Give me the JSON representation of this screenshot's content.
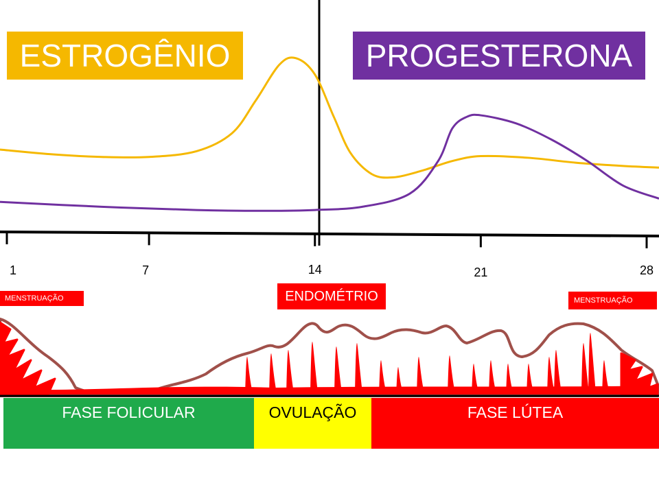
{
  "labels": {
    "estrogen": "ESTROGÊNIO",
    "progesterone": "PROGESTERONA",
    "endometrium": "ENDOMÉTRIO",
    "menstruation_left": "MENSTRUAÇÃO",
    "menstruation_right": "MENSTRUAÇÃO"
  },
  "colors": {
    "estrogen": "#f5b800",
    "progesterone": "#7030a0",
    "red": "#ff0000",
    "endometrium_outline": "#a0504a",
    "follicular": "#1faa4b",
    "ovulation": "#ffff00",
    "luteal": "#ff0000"
  },
  "phases": [
    {
      "name": "FASE FOLICULAR"
    },
    {
      "name": "OVULAÇÃO"
    },
    {
      "name": "FASE LÚTEA"
    }
  ],
  "chart_data": {
    "type": "line",
    "x_ticks": [
      1,
      7,
      14,
      21,
      28
    ],
    "xlim": [
      1,
      28
    ],
    "ylim": [
      0,
      100
    ],
    "series": [
      {
        "name": "ESTROGÊNIO",
        "x": [
          1,
          3,
          5,
          7,
          9,
          10.5,
          11.5,
          12.5,
          13.2,
          14,
          14.8,
          15.5,
          16.4,
          17.3,
          18.5,
          19.8,
          21,
          23,
          25,
          27,
          28
        ],
        "y": [
          42,
          39,
          37.5,
          37.5,
          41,
          52,
          72,
          94,
          98,
          88,
          62,
          40,
          27,
          25,
          29,
          35,
          38,
          37,
          34,
          32,
          31
        ]
      },
      {
        "name": "PROGESTERONA",
        "x": [
          1,
          5,
          9,
          12,
          14,
          16,
          18,
          19.2,
          19.8,
          20.4,
          21,
          22.5,
          24,
          25.5,
          27,
          28
        ],
        "y": [
          10,
          7,
          5,
          4.5,
          5,
          7,
          15,
          35,
          55,
          62,
          63,
          58,
          48,
          35,
          20,
          12
        ]
      }
    ]
  }
}
